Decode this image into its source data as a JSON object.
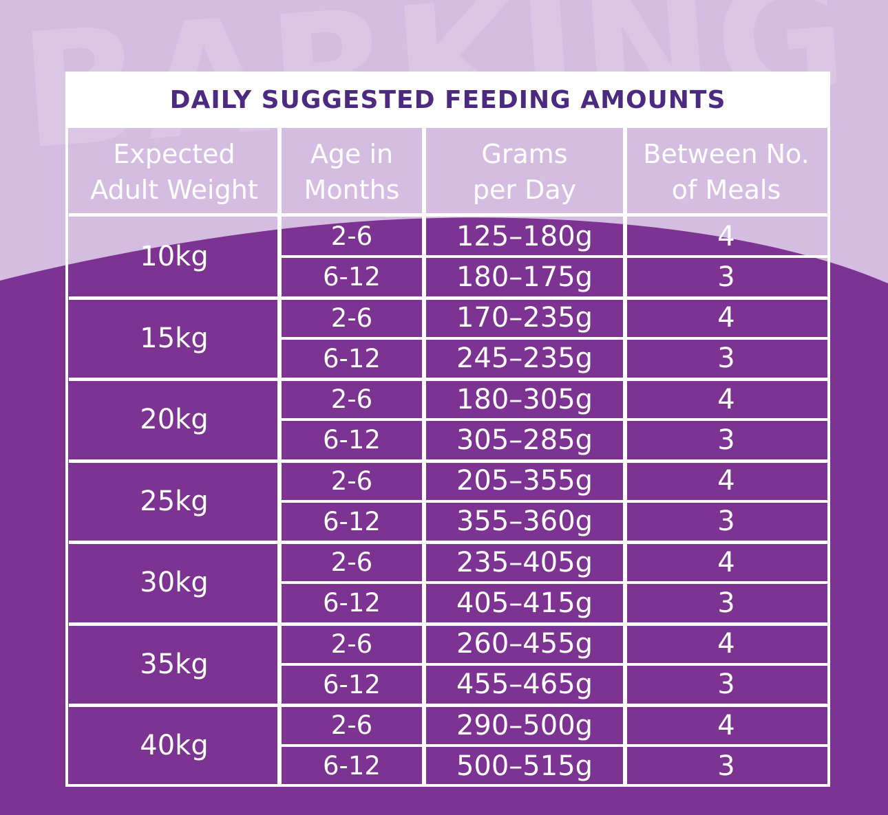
{
  "background": {
    "watermark_text": "BARKING",
    "colors": {
      "light": "#d4bde0",
      "dark": "#7c3391",
      "title": "#4b2a7f"
    }
  },
  "table": {
    "title": "DAILY SUGGESTED FEEDING AMOUNTS",
    "headers": [
      "Expected\nAdult Weight",
      "Age in\nMonths",
      "Grams\nper Day",
      "Between No.\nof Meals"
    ],
    "groups": [
      {
        "weight": "10kg",
        "rows": [
          {
            "age": "2-6",
            "grams": "125–180g",
            "meals": "4"
          },
          {
            "age": "6-12",
            "grams": "180–175g",
            "meals": "3"
          }
        ]
      },
      {
        "weight": "15kg",
        "rows": [
          {
            "age": "2-6",
            "grams": "170–235g",
            "meals": "4"
          },
          {
            "age": "6-12",
            "grams": "245–235g",
            "meals": "3"
          }
        ]
      },
      {
        "weight": "20kg",
        "rows": [
          {
            "age": "2-6",
            "grams": "180–305g",
            "meals": "4"
          },
          {
            "age": "6-12",
            "grams": "305–285g",
            "meals": "3"
          }
        ]
      },
      {
        "weight": "25kg",
        "rows": [
          {
            "age": "2-6",
            "grams": "205–355g",
            "meals": "4"
          },
          {
            "age": "6-12",
            "grams": "355–360g",
            "meals": "3"
          }
        ]
      },
      {
        "weight": "30kg",
        "rows": [
          {
            "age": "2-6",
            "grams": "235–405g",
            "meals": "4"
          },
          {
            "age": "6-12",
            "grams": "405–415g",
            "meals": "3"
          }
        ]
      },
      {
        "weight": "35kg",
        "rows": [
          {
            "age": "2-6",
            "grams": "260–455g",
            "meals": "4"
          },
          {
            "age": "6-12",
            "grams": "455–465g",
            "meals": "3"
          }
        ]
      },
      {
        "weight": "40kg",
        "rows": [
          {
            "age": "2-6",
            "grams": "290–500g",
            "meals": "4"
          },
          {
            "age": "6-12",
            "grams": "500–515g",
            "meals": "3"
          }
        ]
      }
    ]
  }
}
